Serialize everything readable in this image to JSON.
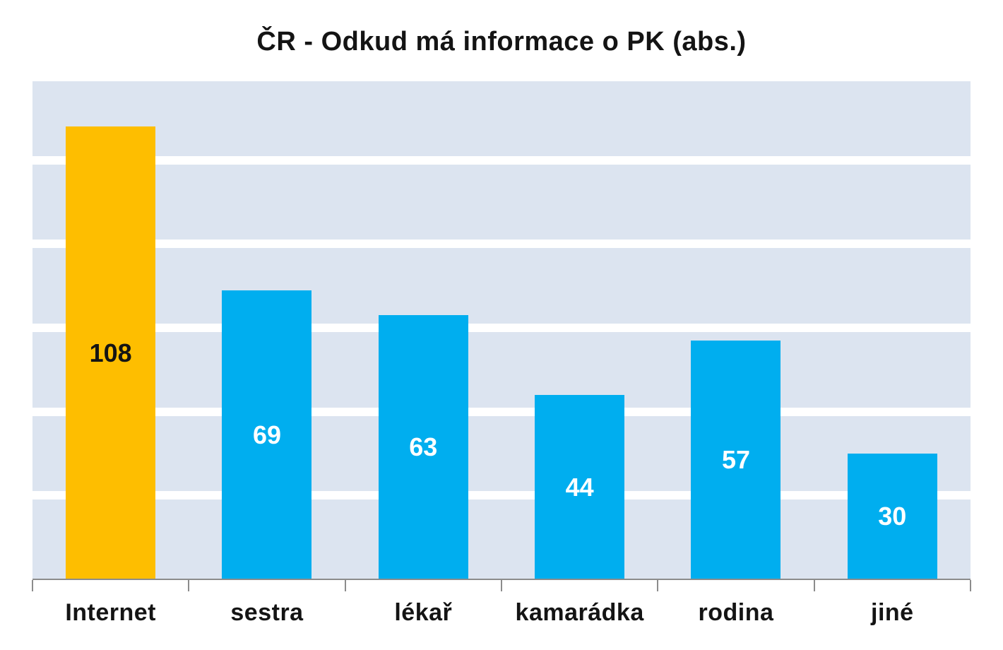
{
  "chart_data": {
    "type": "bar",
    "title": "ČR - Odkud má informace o PK (abs.)",
    "categories": [
      "Internet",
      "sestra",
      "lékař",
      "kamarádka",
      "rodina",
      "jiné"
    ],
    "values": [
      108,
      69,
      63,
      44,
      57,
      30
    ],
    "bar_colors": [
      "#febe00",
      "#00aeef",
      "#00aeef",
      "#00aeef",
      "#00aeef",
      "#00aeef"
    ],
    "value_label_colors": [
      "#141414",
      "#ffffff",
      "#ffffff",
      "#ffffff",
      "#ffffff",
      "#ffffff"
    ],
    "highlight_category": "Internet",
    "highlight_color": "#febe00",
    "series_color": "#00aeef",
    "xlabel": "",
    "ylabel": "",
    "ylim": [
      0,
      120
    ],
    "grid_step": 20,
    "grid": true,
    "legend": false,
    "y_axis_labels_visible": false,
    "plot_bg": "#dce4f0",
    "gridline_color": "#ffffff",
    "axis_color": "#8c8c8c",
    "title_color": "#141414",
    "background": "#ffffff"
  }
}
